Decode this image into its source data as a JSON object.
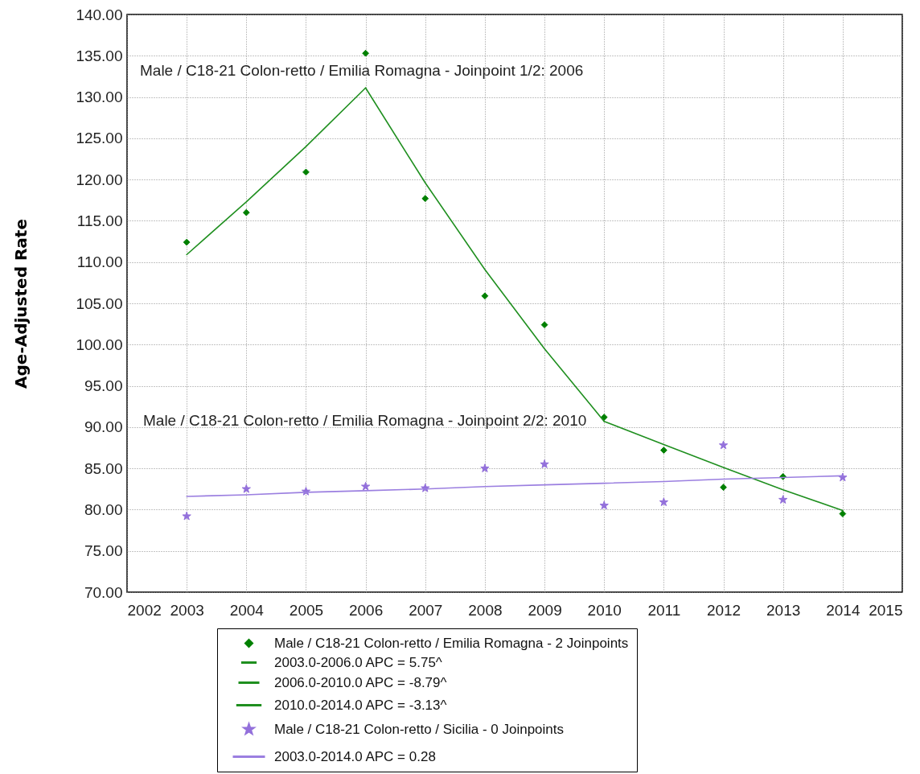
{
  "chart_data": {
    "type": "scatter",
    "ylabel": "Age-Adjusted Rate",
    "annotations": [
      "Male / C18-21 Colon-retto / Emilia Romagna - Joinpoint 1/2:  2006",
      "Male / C18-21 Colon-retto / Emilia Romagna - Joinpoint 2/2:  2010"
    ],
    "x": [
      2003,
      2004,
      2005,
      2006,
      2007,
      2008,
      2009,
      2010,
      2011,
      2012,
      2013,
      2014
    ],
    "xlim": [
      2002,
      2015
    ],
    "xticks": [
      2002,
      2003,
      2004,
      2005,
      2006,
      2007,
      2008,
      2009,
      2010,
      2011,
      2012,
      2013,
      2014,
      2015
    ],
    "ylim": [
      70,
      140
    ],
    "yticks": [
      {
        "value": 70,
        "label": "70.00"
      },
      {
        "value": 75,
        "label": "75.00"
      },
      {
        "value": 80,
        "label": "80.00"
      },
      {
        "value": 85,
        "label": "85.00"
      },
      {
        "value": 90,
        "label": "90.00"
      },
      {
        "value": 95,
        "label": "95.00"
      },
      {
        "value": 100,
        "label": "100.00"
      },
      {
        "value": 105,
        "label": "105.00"
      },
      {
        "value": 110,
        "label": "110.00"
      },
      {
        "value": 115,
        "label": "115.00"
      },
      {
        "value": 120,
        "label": "120.00"
      },
      {
        "value": 125,
        "label": "125.00"
      },
      {
        "value": 130,
        "label": "130.00"
      },
      {
        "value": 135,
        "label": "135.00"
      },
      {
        "value": 140,
        "label": "140.00"
      }
    ],
    "grid": true,
    "legend": "bottom",
    "series": [
      {
        "name": "Male / C18-21 Colon-retto / Emilia Romagna - 2 Joinpoints",
        "type": "scatter",
        "marker": "diamond",
        "color": "#008000",
        "values": [
          112.4,
          116.0,
          120.9,
          135.3,
          117.7,
          105.9,
          102.4,
          91.2,
          87.2,
          82.7,
          84.0,
          79.5
        ]
      },
      {
        "name": "2003.0-2006.0 APC  =  5.75^",
        "type": "line",
        "color": "#1f8f1f",
        "x": [
          2003,
          2004,
          2005,
          2006
        ],
        "values": [
          110.9,
          117.3,
          124.0,
          131.1
        ]
      },
      {
        "name": "2006.0-2010.0 APC  = -8.79^",
        "type": "line",
        "color": "#1f8f1f",
        "x": [
          2006,
          2007,
          2008,
          2009,
          2010
        ],
        "values": [
          131.1,
          119.6,
          109.1,
          99.5,
          90.7
        ]
      },
      {
        "name": "2010.0-2014.0 APC  = -3.13^",
        "type": "line",
        "color": "#1f8f1f",
        "x": [
          2010,
          2011,
          2012,
          2013,
          2014
        ],
        "values": [
          90.7,
          87.9,
          85.1,
          82.4,
          79.9
        ]
      },
      {
        "name": "Male / C18-21 Colon-retto / Sicilia - 0 Joinpoints",
        "type": "scatter",
        "marker": "star",
        "color": "#9370db",
        "values": [
          79.2,
          82.5,
          82.2,
          82.8,
          82.6,
          85.0,
          85.5,
          80.5,
          80.9,
          87.8,
          81.2,
          83.9
        ]
      },
      {
        "name": "2003.0-2014.0 APC  = 0.28",
        "type": "line",
        "color": "#9b7fe0",
        "values": [
          81.6,
          81.8,
          82.1,
          82.3,
          82.5,
          82.8,
          83.0,
          83.2,
          83.4,
          83.7,
          83.9,
          84.1
        ]
      }
    ]
  }
}
